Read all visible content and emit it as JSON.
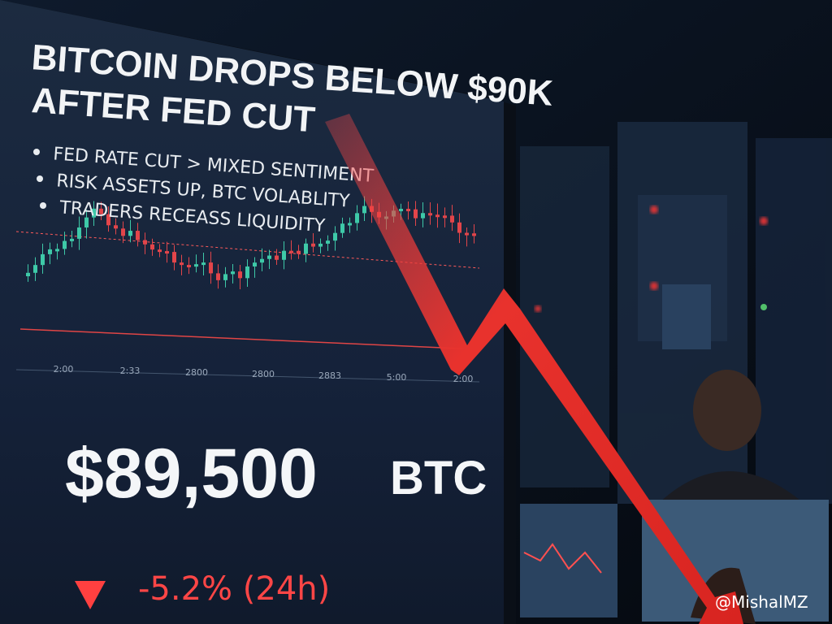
{
  "headline": {
    "lines": [
      "BITCOIN DROPS BELOW $90K",
      "AFTER FED CUT"
    ]
  },
  "bullets": [
    "FED RATE CUT > MIXED SENTIMENT",
    "RISK ASSETS UP, BTC VOLABLITY",
    "TRADERS RECEASS LIQUIDITY"
  ],
  "chart": {
    "x_labels": [
      "2:00",
      "2:33",
      "2800",
      "2800",
      "2883",
      "5:00",
      "2:00"
    ]
  },
  "price": {
    "value": "$89,500",
    "unit": "BTC"
  },
  "change": {
    "text": "-5.2% (24h)"
  },
  "watermark": "@MishalMZ"
}
